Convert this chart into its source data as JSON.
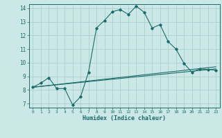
{
  "title": "",
  "xlabel": "Humidex (Indice chaleur)",
  "bg_color": "#cce8e6",
  "grid_color": "#aacfcc",
  "line_color": "#1a6b6b",
  "xlim": [
    -0.5,
    23.5
  ],
  "ylim": [
    6.7,
    14.3
  ],
  "xticks": [
    0,
    1,
    2,
    3,
    4,
    5,
    6,
    7,
    8,
    9,
    10,
    11,
    12,
    13,
    14,
    15,
    16,
    17,
    18,
    19,
    20,
    21,
    22,
    23
  ],
  "yticks": [
    7,
    8,
    9,
    10,
    11,
    12,
    13,
    14
  ],
  "line1_x": [
    0,
    1,
    2,
    3,
    4,
    5,
    6,
    7,
    8,
    9,
    10,
    11,
    12,
    13,
    14,
    15,
    16,
    17,
    18,
    19,
    20,
    21,
    22,
    23
  ],
  "line1_y": [
    8.2,
    8.5,
    8.9,
    8.1,
    8.1,
    6.9,
    7.5,
    9.3,
    12.55,
    13.1,
    13.75,
    13.9,
    13.55,
    14.15,
    13.7,
    12.55,
    12.8,
    11.55,
    11.0,
    9.95,
    9.3,
    9.55,
    9.5,
    9.45
  ],
  "line2_x": [
    0,
    23
  ],
  "line2_y": [
    8.2,
    9.7
  ],
  "line3_x": [
    0,
    23
  ],
  "line3_y": [
    8.2,
    9.55
  ]
}
